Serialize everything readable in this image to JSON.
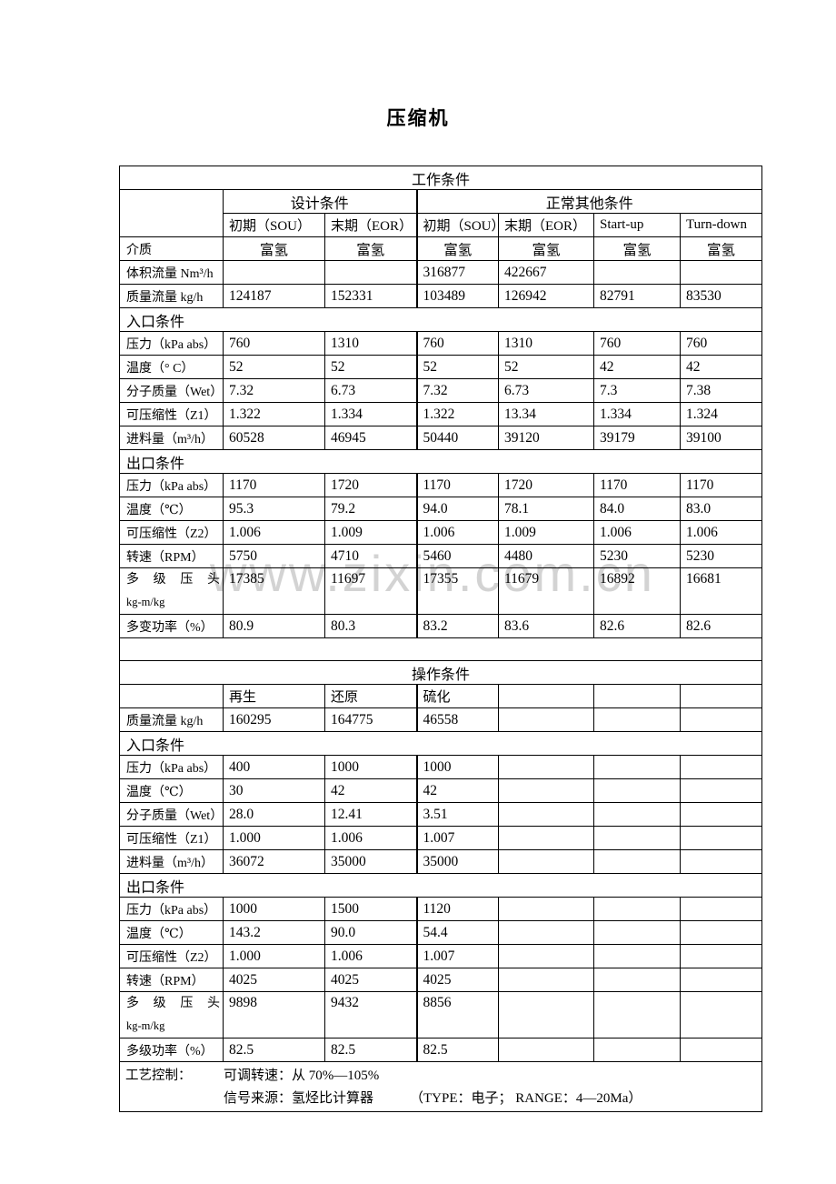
{
  "page": {
    "title": "压缩机"
  },
  "watermark": {
    "text": "www.zixin.com.cn"
  },
  "table": {
    "rows": [
      {
        "kind": "title",
        "text": "工作条件"
      },
      {
        "kind": "group",
        "groups": [
          {
            "text": "设计条件",
            "span": 2
          },
          {
            "text": "正常其他条件",
            "span": 4
          }
        ]
      },
      {
        "kind": "subhead",
        "values": [
          "初期（SOU）",
          "末期（EOR）",
          "初期（SOU）",
          "末期（EOR）",
          "Start-up",
          "Turn-down"
        ]
      },
      {
        "kind": "center",
        "label": "介质",
        "values": [
          "富氢",
          "富氢",
          "富氢",
          "富氢",
          "富氢",
          "富氢"
        ]
      },
      {
        "kind": "data",
        "label": "体积流量 Nm³/h",
        "values": [
          "",
          "",
          "316877",
          "422667",
          "",
          ""
        ]
      },
      {
        "kind": "data",
        "label": "质量流量 kg/h",
        "values": [
          "124187",
          "152331",
          "103489",
          "126942",
          "82791",
          "83530"
        ]
      },
      {
        "kind": "section",
        "text": "入口条件"
      },
      {
        "kind": "data",
        "label": "压力（kPa abs）",
        "values": [
          "760",
          "1310",
          "760",
          "1310",
          "760",
          "760"
        ]
      },
      {
        "kind": "data",
        "label": "温度（° C）",
        "values": [
          "52",
          "52",
          "52",
          "52",
          "42",
          "42"
        ]
      },
      {
        "kind": "data",
        "label": "分子质量（Wet）",
        "values": [
          "7.32",
          "6.73",
          "7.32",
          "6.73",
          "7.3",
          "7.38"
        ]
      },
      {
        "kind": "data",
        "label": "可压缩性（Z1）",
        "values": [
          "1.322",
          "1.334",
          "1.322",
          "13.34",
          "1.334",
          "1.324"
        ]
      },
      {
        "kind": "data",
        "label": "进料量（m³/h）",
        "values": [
          "60528",
          "46945",
          "50440",
          "39120",
          "39179",
          "39100"
        ]
      },
      {
        "kind": "section",
        "text": "出口条件"
      },
      {
        "kind": "data",
        "label": "压力（kPa abs）",
        "values": [
          "1170",
          "1720",
          "1170",
          "1720",
          "1170",
          "1170"
        ]
      },
      {
        "kind": "data",
        "label": "温度（℃）",
        "values": [
          "95.3",
          "79.2",
          "94.0",
          "78.1",
          "84.0",
          "83.0"
        ]
      },
      {
        "kind": "data",
        "label": "可压缩性（Z2）",
        "values": [
          "1.006",
          "1.009",
          "1.006",
          "1.009",
          "1.006",
          "1.006"
        ]
      },
      {
        "kind": "data",
        "label": "转速（RPM）",
        "values": [
          "5750",
          "4710",
          "5460",
          "4480",
          "5230",
          "5230"
        ]
      },
      {
        "kind": "data2",
        "label_line1": "多 级 压 头",
        "label_line2": "kg-m/kg",
        "values": [
          "17385",
          "11697",
          "17355",
          "11679",
          "16892",
          "16681"
        ]
      },
      {
        "kind": "data",
        "label": "多变功率（%）",
        "values": [
          "80.9",
          "80.3",
          "83.2",
          "83.6",
          "82.6",
          "82.6"
        ]
      },
      {
        "kind": "blank"
      },
      {
        "kind": "title",
        "text": "操作条件"
      },
      {
        "kind": "phead",
        "values": [
          "再生",
          "还原",
          "硫化",
          "",
          "",
          ""
        ]
      },
      {
        "kind": "data",
        "label": "质量流量 kg/h",
        "values": [
          "160295",
          "164775",
          "46558",
          "",
          "",
          ""
        ]
      },
      {
        "kind": "section",
        "text": "入口条件"
      },
      {
        "kind": "data",
        "label": "压力（kPa abs）",
        "values": [
          "400",
          "1000",
          "1000",
          "",
          "",
          ""
        ]
      },
      {
        "kind": "data",
        "label": "温度（℃）",
        "values": [
          "30",
          "42",
          "42",
          "",
          "",
          ""
        ]
      },
      {
        "kind": "data",
        "label": "分子质量（Wet）",
        "values": [
          "28.0",
          "12.41",
          "3.51",
          "",
          "",
          ""
        ]
      },
      {
        "kind": "data",
        "label": "可压缩性（Z1）",
        "values": [
          "1.000",
          "1.006",
          "1.007",
          "",
          "",
          ""
        ]
      },
      {
        "kind": "data",
        "label": "进料量（m³/h）",
        "values": [
          "36072",
          "35000",
          "35000",
          "",
          "",
          ""
        ]
      },
      {
        "kind": "section",
        "text": "出口条件"
      },
      {
        "kind": "data",
        "label": "压力（kPa abs）",
        "values": [
          "1000",
          "1500",
          "1120",
          "",
          "",
          ""
        ]
      },
      {
        "kind": "data",
        "label": "温度（℃）",
        "values": [
          "143.2",
          "90.0",
          "54.4",
          "",
          "",
          ""
        ]
      },
      {
        "kind": "data",
        "label": "可压缩性（Z2）",
        "values": [
          "1.000",
          "1.006",
          "1.007",
          "",
          "",
          ""
        ]
      },
      {
        "kind": "data",
        "label": "转速（RPM）",
        "values": [
          "4025",
          "4025",
          "4025",
          "",
          "",
          ""
        ]
      },
      {
        "kind": "data2",
        "label_line1": "多 级 压 头",
        "label_line2": "kg-m/kg",
        "values": [
          "9898",
          "9432",
          "8856",
          "",
          "",
          ""
        ]
      },
      {
        "kind": "data",
        "label": "多级功率（%）",
        "values": [
          "82.5",
          "82.5",
          "82.5",
          "",
          "",
          ""
        ]
      },
      {
        "kind": "note",
        "label": "工艺控制：",
        "line1": "可调转速：从 70%—105%",
        "line2_left": "信号来源：氢烃比计算器",
        "line2_right": "（TYPE：电子； RANGE：4—20Ma）"
      }
    ]
  }
}
